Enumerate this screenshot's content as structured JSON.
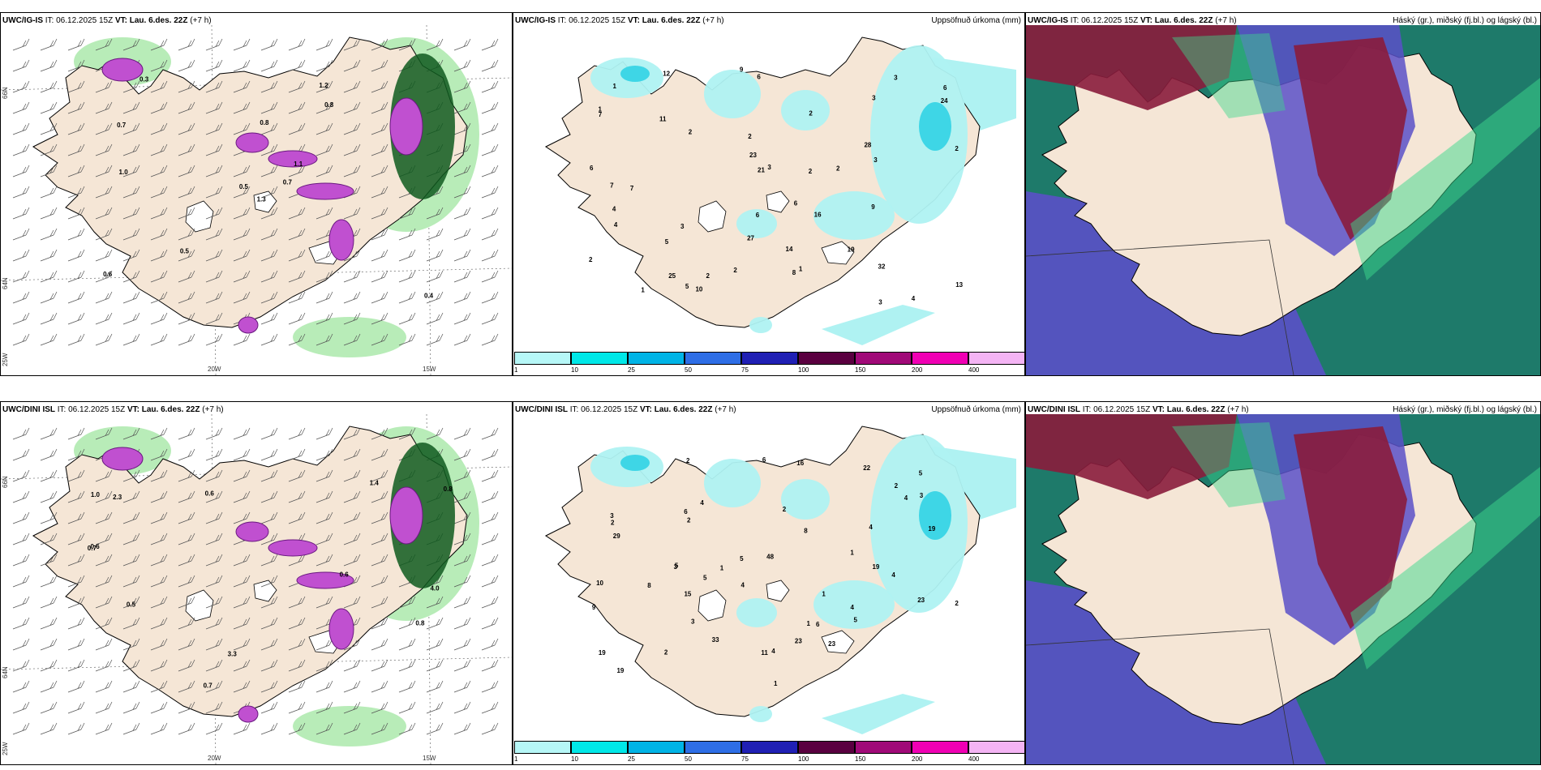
{
  "panels": [
    {
      "model": "UWC/IG-IS",
      "it_label": "IT:",
      "it": "06.12.2025 15Z",
      "vt_label": "VT:",
      "vt": "Lau. 6.des. 22Z",
      "lead": "(+7 h)",
      "title_right": ""
    },
    {
      "model": "UWC/IG-IS",
      "it_label": "IT:",
      "it": "06.12.2025 15Z",
      "vt_label": "VT:",
      "vt": "Lau. 6.des. 22Z",
      "lead": "(+7 h)",
      "title_right": "Uppsöfnuð úrkoma (mm)"
    },
    {
      "model": "UWC/IG-IS",
      "it_label": "IT:",
      "it": "06.12.2025 15Z",
      "vt_label": "VT:",
      "vt": "Lau. 6.des. 22Z",
      "lead": "(+7 h)",
      "title_right": "Háský (gr.), miðský (fj.bl.) og lágský (bl.)"
    },
    {
      "model": "UWC/DINI ISL",
      "it_label": "IT:",
      "it": "06.12.2025 15Z",
      "vt_label": "VT:",
      "vt": "Lau. 6.des. 22Z",
      "lead": "(+7 h)",
      "title_right": ""
    },
    {
      "model": "UWC/DINI ISL",
      "it_label": "IT:",
      "it": "06.12.2025 15Z",
      "vt_label": "VT:",
      "vt": "Lau. 6.des. 22Z",
      "lead": "(+7 h)",
      "title_right": "Uppsöfnuð úrkoma (mm)"
    },
    {
      "model": "UWC/DINI ISL",
      "it_label": "IT:",
      "it": "06.12.2025 15Z",
      "vt_label": "VT:",
      "vt": "Lau. 6.des. 22Z",
      "lead": "(+7 h)",
      "title_right": "Háský (gr.), miðský (fj.bl.) og lágský (bl.)"
    }
  ],
  "axis_labels": {
    "lon_20": "20W",
    "lon_15": "15W",
    "lon_25": "25W",
    "lat_66": "66N",
    "lat_64": "64N"
  },
  "precip_legend": {
    "ticks": [
      "1",
      "10",
      "25",
      "50",
      "75",
      "100",
      "150",
      "200",
      "400"
    ],
    "colors": [
      "#b6f7f7",
      "#00e8e8",
      "#00b4e6",
      "#2e6ee6",
      "#2020b4",
      "#5a0040",
      "#a00a78",
      "#f000b4",
      "#f4b4f4"
    ]
  },
  "colors": {
    "land": "#f5e6d6",
    "precip_light": "#aff2f2",
    "precip_mid": "#3ed6e6",
    "wind_green_light": "#b8ecb8",
    "wind_green_dark": "#0f5a1e",
    "snow_magenta": "#c050d0",
    "cloud_high": "#8a1c3c",
    "cloud_mid": "#5a50c8",
    "cloud_low": "#1e7a6a",
    "cloud_green": "#3cd88c"
  },
  "maps": [
    {
      "labels": [
        "1.3",
        "0.7",
        "0.5",
        "0.6",
        "1.1",
        "0.5",
        "1.2",
        "0.8",
        "0.8",
        "0.7",
        "0.3",
        "0.4",
        "1.0"
      ]
    },
    {
      "labels": [
        "6",
        "6",
        "28",
        "6",
        "1",
        "4",
        "7",
        "2",
        "2",
        "3",
        "3",
        "9",
        "9",
        "7",
        "11",
        "5",
        "1",
        "7",
        "6",
        "27",
        "19",
        "32",
        "24",
        "23",
        "25",
        "21",
        "16",
        "12",
        "10",
        "8",
        "4",
        "3",
        "2",
        "1",
        "5",
        "4",
        "3",
        "1",
        "2",
        "2",
        "14",
        "2",
        "13",
        "2",
        "6",
        "3",
        "3",
        "2",
        "2"
      ]
    },
    {
      "labels": []
    },
    {
      "labels": [
        "1.0",
        "0.5",
        "0.7",
        "0.6",
        "0.8",
        "0.6",
        "0.7",
        "1.4",
        "4.0",
        "0.6",
        "2.3",
        "3.3",
        "0.8"
      ]
    },
    {
      "labels": [
        "16",
        "48",
        "23",
        "1",
        "1",
        "1",
        "4",
        "5",
        "5",
        "6",
        "4",
        "5",
        "3",
        "6",
        "2",
        "2",
        "19",
        "19",
        "8",
        "15",
        "22",
        "23",
        "19",
        "33",
        "29",
        "23",
        "19",
        "11",
        "10",
        "8",
        "5",
        "4",
        "3",
        "3",
        "2",
        "2",
        "2",
        "1",
        "1",
        "4",
        "6",
        "4",
        "5",
        "3",
        "9",
        "2",
        "4",
        "4",
        "2"
      ]
    },
    {
      "labels": []
    }
  ]
}
